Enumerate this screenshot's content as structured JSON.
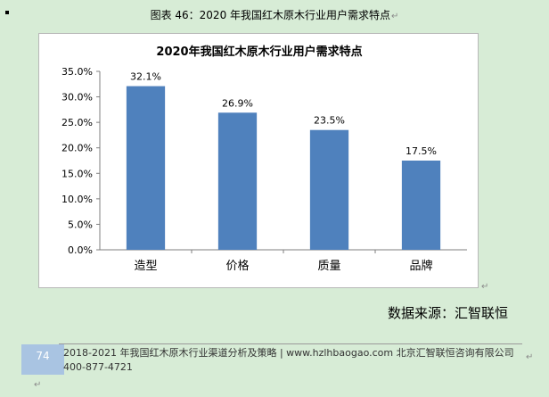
{
  "caption": "图表 46：2020 年我国红木原木行业用户需求特点",
  "paragraph_mark": "↵",
  "source_text": "数据来源：汇智联恒",
  "footer": {
    "page_number": "74",
    "text": "2018-2021 年我国红木原木行业渠道分析及策略 | www.hzlhbaogao.com 北京汇智联恒咨询有限公司 400-877-4721"
  },
  "colors": {
    "bar": "#4f81bd",
    "grid": "#bfbfbf",
    "background": "#d7ecd6"
  },
  "chart_data": {
    "type": "bar",
    "title": "2020年我国红木原木行业用户需求特点",
    "categories": [
      "造型",
      "价格",
      "质量",
      "品牌"
    ],
    "values": [
      32.1,
      26.9,
      23.5,
      17.5
    ],
    "data_labels": [
      "32.1%",
      "26.9%",
      "23.5%",
      "17.5%"
    ],
    "y_ticks": [
      "0.0%",
      "5.0%",
      "10.0%",
      "15.0%",
      "20.0%",
      "25.0%",
      "30.0%",
      "35.0%"
    ],
    "ylim": [
      0,
      35
    ],
    "xlabel": "",
    "ylabel": "",
    "grid": false,
    "legend": "none"
  }
}
